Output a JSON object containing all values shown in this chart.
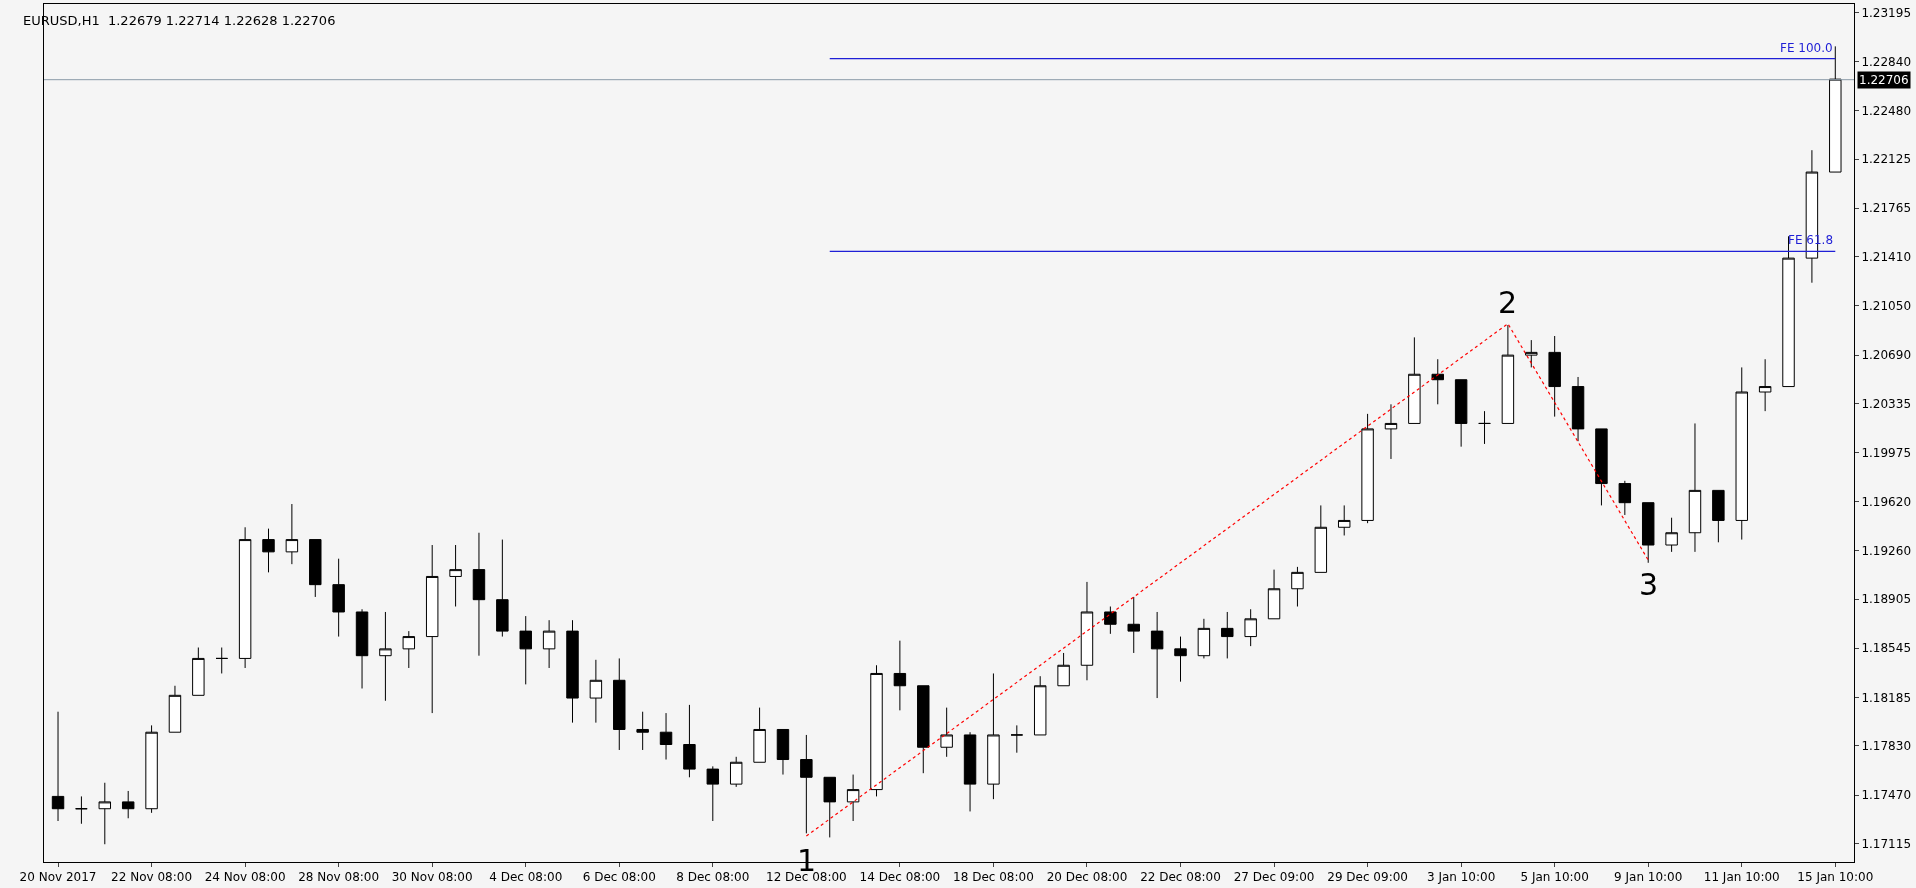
{
  "chart_data": {
    "type": "candlestick",
    "title": "EURUSD,H1  1.22679 1.22714 1.22628 1.22706",
    "categories": [
      "20 Nov 2017",
      null,
      null,
      null,
      "22 Nov 08:00",
      null,
      null,
      null,
      "24 Nov 08:00",
      null,
      null,
      null,
      "28 Nov 08:00",
      null,
      null,
      null,
      "30 Nov 08:00",
      null,
      null,
      null,
      "4 Dec 08:00",
      null,
      null,
      null,
      "6 Dec 08:00",
      null,
      null,
      null,
      "8 Dec 08:00",
      null,
      null,
      null,
      "12 Dec 08:00",
      null,
      null,
      null,
      "14 Dec 08:00",
      null,
      null,
      null,
      "18 Dec 08:00",
      null,
      null,
      null,
      "20 Dec 08:00",
      null,
      null,
      null,
      "22 Dec 08:00",
      null,
      null,
      null,
      "27 Dec 09:00",
      null,
      null,
      null,
      "29 Dec 09:00",
      null,
      null,
      null,
      "3 Jan 10:00",
      null,
      null,
      null,
      "5 Jan 10:00",
      null,
      null,
      null,
      "9 Jan 10:00",
      null,
      null,
      null,
      "11 Jan 10:00",
      null,
      null,
      null,
      "15 Jan 10:00"
    ],
    "ohlc": [
      [
        1.1746,
        1.1808,
        1.1728,
        1.1737
      ],
      [
        1.1737,
        1.1746,
        1.1726,
        1.1737
      ],
      [
        1.1737,
        1.1756,
        1.1711,
        1.1742
      ],
      [
        1.1742,
        1.175,
        1.173,
        1.1737
      ],
      [
        1.1737,
        1.1798,
        1.1734,
        1.1793
      ],
      [
        1.1793,
        1.1827,
        1.1793,
        1.182
      ],
      [
        1.182,
        1.1855,
        1.182,
        1.1847
      ],
      [
        1.1847,
        1.1855,
        1.1836,
        1.1847
      ],
      [
        1.1847,
        1.1943,
        1.184,
        1.1934
      ],
      [
        1.1934,
        1.1942,
        1.191,
        1.1925
      ],
      [
        1.1925,
        1.196,
        1.1916,
        1.1934
      ],
      [
        1.1934,
        1.1934,
        1.1892,
        1.1901
      ],
      [
        1.1901,
        1.192,
        1.1863,
        1.1881
      ],
      [
        1.1881,
        1.1883,
        1.1825,
        1.1849
      ],
      [
        1.1849,
        1.1881,
        1.1816,
        1.1854
      ],
      [
        1.1854,
        1.1867,
        1.184,
        1.1863
      ],
      [
        1.1863,
        1.193,
        1.1807,
        1.1907
      ],
      [
        1.1907,
        1.193,
        1.1885,
        1.1912
      ],
      [
        1.1912,
        1.1939,
        1.1849,
        1.189
      ],
      [
        1.189,
        1.1934,
        1.1863,
        1.1867
      ],
      [
        1.1867,
        1.1878,
        1.1828,
        1.1854
      ],
      [
        1.1854,
        1.1875,
        1.184,
        1.1867
      ],
      [
        1.1867,
        1.1875,
        1.18,
        1.1818
      ],
      [
        1.1818,
        1.1846,
        1.18,
        1.1831
      ],
      [
        1.1831,
        1.1847,
        1.178,
        1.1795
      ],
      [
        1.1795,
        1.1808,
        1.178,
        1.1793
      ],
      [
        1.1793,
        1.1807,
        1.1773,
        1.1784
      ],
      [
        1.1784,
        1.1813,
        1.176,
        1.1766
      ],
      [
        1.1766,
        1.1768,
        1.1728,
        1.1755
      ],
      [
        1.1755,
        1.1775,
        1.1753,
        1.1771
      ],
      [
        1.1771,
        1.1811,
        1.1771,
        1.1795
      ],
      [
        1.1795,
        1.1795,
        1.1762,
        1.1773
      ],
      [
        1.1773,
        1.1791,
        1.1719,
        1.176
      ],
      [
        1.176,
        1.176,
        1.1716,
        1.1742
      ],
      [
        1.1742,
        1.1762,
        1.1728,
        1.1751
      ],
      [
        1.1751,
        1.1842,
        1.1746,
        1.1836
      ],
      [
        1.1836,
        1.186,
        1.1809,
        1.1827
      ],
      [
        1.1827,
        1.1827,
        1.1763,
        1.1782
      ],
      [
        1.1782,
        1.1811,
        1.1775,
        1.1791
      ],
      [
        1.1791,
        1.1793,
        1.1735,
        1.1755
      ],
      [
        1.1755,
        1.1836,
        1.1744,
        1.1791
      ],
      [
        1.1791,
        1.1798,
        1.1778,
        1.1791
      ],
      [
        1.1791,
        1.1834,
        1.1791,
        1.1827
      ],
      [
        1.1827,
        1.1851,
        1.1827,
        1.1842
      ],
      [
        1.1842,
        1.1903,
        1.1831,
        1.1881
      ],
      [
        1.1881,
        1.1885,
        1.1865,
        1.1872
      ],
      [
        1.1872,
        1.1892,
        1.1851,
        1.1867
      ],
      [
        1.1867,
        1.1881,
        1.1818,
        1.1854
      ],
      [
        1.1854,
        1.1863,
        1.183,
        1.1849
      ],
      [
        1.1849,
        1.1876,
        1.1847,
        1.1869
      ],
      [
        1.1869,
        1.1881,
        1.1847,
        1.1863
      ],
      [
        1.1863,
        1.1883,
        1.1856,
        1.1876
      ],
      [
        1.1876,
        1.1912,
        1.1876,
        1.1898
      ],
      [
        1.1898,
        1.1914,
        1.1885,
        1.191
      ],
      [
        1.191,
        1.1959,
        1.191,
        1.1943
      ],
      [
        1.1943,
        1.1959,
        1.1937,
        1.1948
      ],
      [
        1.1948,
        1.2026,
        1.1946,
        1.2015
      ],
      [
        1.2015,
        1.2033,
        1.1993,
        1.2019
      ],
      [
        1.2019,
        1.2082,
        1.2019,
        1.2055
      ],
      [
        1.2055,
        1.2066,
        1.2033,
        1.2051
      ],
      [
        1.2051,
        1.2051,
        1.2002,
        1.2019
      ],
      [
        1.2019,
        1.2028,
        1.2004,
        1.2019
      ],
      [
        1.2019,
        1.2091,
        1.2019,
        1.2069
      ],
      [
        1.2069,
        1.208,
        1.206,
        1.2071
      ],
      [
        1.2071,
        1.2083,
        1.2024,
        1.2046
      ],
      [
        1.2046,
        1.2053,
        1.2006,
        1.2015
      ],
      [
        1.2015,
        1.2015,
        1.1959,
        1.1975
      ],
      [
        1.1975,
        1.1977,
        1.1952,
        1.1961
      ],
      [
        1.1961,
        1.1961,
        1.1917,
        1.193
      ],
      [
        1.193,
        1.195,
        1.1925,
        1.1939
      ],
      [
        1.1939,
        1.2019,
        1.1925,
        1.197
      ],
      [
        1.197,
        1.197,
        1.1932,
        1.1948
      ],
      [
        1.1948,
        1.206,
        1.1934,
        1.2042
      ],
      [
        1.2042,
        1.2066,
        1.2028,
        1.2046
      ],
      [
        1.2046,
        1.2156,
        1.2046,
        1.214
      ],
      [
        1.214,
        1.2219,
        1.2122,
        1.2203
      ],
      [
        1.2203,
        1.2295,
        1.2203,
        1.2271
      ]
    ],
    "color": "#000000",
    "series": [
      {
        "type": "line",
        "name": "FE 100.0",
        "color": "#1f1fd6",
        "values": [
          null,
          null,
          null,
          null,
          null,
          null,
          null,
          null,
          null,
          null,
          null,
          null,
          null,
          null,
          null,
          null,
          null,
          null,
          null,
          null,
          null,
          null,
          null,
          null,
          null,
          null,
          null,
          null,
          null,
          null,
          null,
          null,
          null,
          1.2286,
          null,
          null,
          null,
          null,
          null,
          null,
          null,
          null,
          null,
          null,
          null,
          null,
          null,
          null,
          null,
          null,
          null,
          null,
          null,
          null,
          null,
          null,
          null,
          null,
          null,
          null,
          null,
          null,
          null,
          null,
          null,
          null,
          null,
          null,
          null,
          null,
          null,
          null,
          null,
          null,
          null,
          null,
          1.2286
        ]
      },
      {
        "type": "line",
        "name": "FE 61.8",
        "color": "#1f1fd6",
        "values": [
          null,
          null,
          null,
          null,
          null,
          null,
          null,
          null,
          null,
          null,
          null,
          null,
          null,
          null,
          null,
          null,
          null,
          null,
          null,
          null,
          null,
          null,
          null,
          null,
          null,
          null,
          null,
          null,
          null,
          null,
          null,
          null,
          null,
          1.2145,
          null,
          null,
          null,
          null,
          null,
          null,
          null,
          null,
          null,
          null,
          null,
          null,
          null,
          null,
          null,
          null,
          null,
          null,
          null,
          null,
          null,
          null,
          null,
          null,
          null,
          null,
          null,
          null,
          null,
          null,
          null,
          null,
          null,
          null,
          null,
          null,
          null,
          null,
          null,
          null,
          null,
          null,
          1.2145
        ]
      },
      {
        "type": "line",
        "color": "#ff0000",
        "line_style": "dotted",
        "values": [
          null,
          null,
          null,
          null,
          null,
          null,
          null,
          null,
          null,
          null,
          null,
          null,
          null,
          null,
          null,
          null,
          null,
          null,
          null,
          null,
          null,
          null,
          null,
          null,
          null,
          null,
          null,
          null,
          null,
          null,
          null,
          null,
          1.1717,
          null,
          null,
          null,
          null,
          null,
          null,
          null,
          null,
          null,
          null,
          null,
          null,
          null,
          null,
          null,
          null,
          null,
          null,
          null,
          null,
          null,
          null,
          null,
          null,
          null,
          null,
          null,
          null,
          null,
          1.2092,
          null,
          null,
          null,
          null,
          null,
          1.1919,
          null,
          null,
          null,
          null,
          null,
          null,
          null,
          null
        ]
      }
    ],
    "ref_lines": [
      {
        "axis": "y",
        "value": 1.22706,
        "label": "1.22706",
        "color": "#8a9aa8"
      }
    ],
    "annotations": [
      "1",
      "2",
      "3"
    ],
    "ylim": [
      1.1698,
      1.2326
    ],
    "yticks": [
      1.23195,
      {
        "value": 1.2284,
        "label": "1.22840"
      },
      {
        "value": 1.2248,
        "label": "1.22480"
      },
      1.22125,
      1.21765,
      {
        "value": 1.2141,
        "label": "1.21410"
      },
      {
        "value": 1.2105,
        "label": "1.21050"
      },
      {
        "value": 1.2069,
        "label": "1.20690"
      },
      1.20335,
      1.19975,
      {
        "value": 1.1962,
        "label": "1.19620"
      },
      {
        "value": 1.1926,
        "label": "1.19260"
      },
      1.18905,
      1.18545,
      1.18185,
      {
        "value": 1.1783,
        "label": "1.17830"
      },
      {
        "value": 1.1747,
        "label": "1.17470"
      },
      1.17115
    ],
    "grid": false,
    "legend": false
  }
}
